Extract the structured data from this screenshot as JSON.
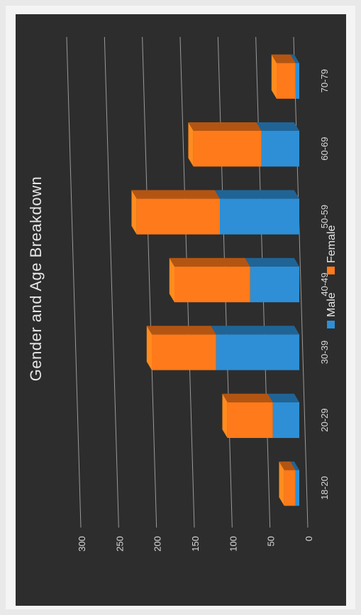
{
  "chart_data": {
    "type": "bar",
    "stacked": true,
    "orientation": "vertical",
    "style_3d": true,
    "title": "Gender and Age Breakdown",
    "categories": [
      "18-20",
      "20-29",
      "30-39",
      "40-49",
      "50-59",
      "60-69",
      "70-79"
    ],
    "series": [
      {
        "name": "Male",
        "color": "#2e8fd6",
        "values": [
          5,
          35,
          110,
          65,
          105,
          50,
          5
        ]
      },
      {
        "name": "Female",
        "color": "#ff7a1a",
        "values": [
          15,
          60,
          85,
          100,
          110,
          90,
          25
        ]
      }
    ],
    "ylim": [
      0,
      300
    ],
    "yticks": [
      0,
      50,
      100,
      150,
      200,
      250,
      300
    ],
    "grid": true,
    "legend_position": "bottom",
    "background": "#2b2b2b"
  }
}
